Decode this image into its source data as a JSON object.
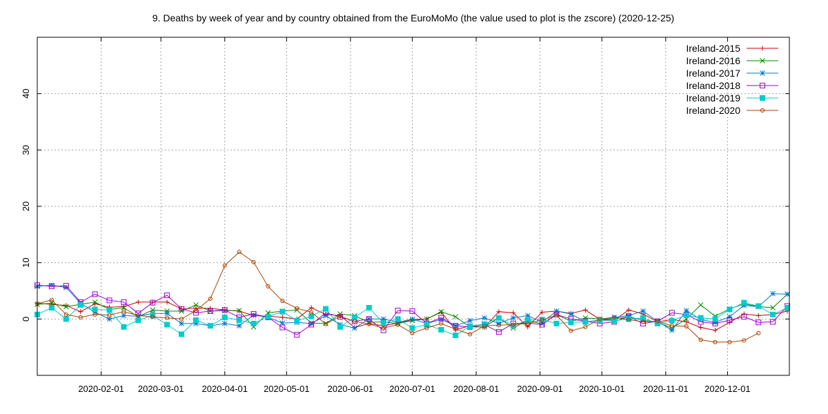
{
  "chart_data": {
    "type": "line",
    "title": "9. Deaths by week of year and by country obtained from the EuroMoMo (the value used to plot is the zscore) (2020-12-25)",
    "xlabel": "",
    "ylabel": "",
    "x_axis": {
      "kind": "date",
      "range": [
        "2020-01-01",
        "2020-12-31"
      ],
      "tick_labels": [
        "2020-02-01",
        "2020-03-01",
        "2020-04-01",
        "2020-05-01",
        "2020-06-01",
        "2020-07-01",
        "2020-08-01",
        "2020-09-01",
        "2020-10-01",
        "2020-11-01",
        "2020-12-01"
      ]
    },
    "y_axis": {
      "range": [
        -10,
        50
      ],
      "ticks": [
        0,
        10,
        20,
        30,
        40
      ]
    },
    "grid": true,
    "legend_position": "top-right",
    "x_dates": [
      "2020-01-01",
      "2020-01-08",
      "2020-01-15",
      "2020-01-22",
      "2020-01-29",
      "2020-02-05",
      "2020-02-12",
      "2020-02-19",
      "2020-02-26",
      "2020-03-04",
      "2020-03-11",
      "2020-03-18",
      "2020-03-25",
      "2020-04-01",
      "2020-04-08",
      "2020-04-15",
      "2020-04-22",
      "2020-04-29",
      "2020-05-06",
      "2020-05-13",
      "2020-05-20",
      "2020-05-27",
      "2020-06-03",
      "2020-06-10",
      "2020-06-17",
      "2020-06-24",
      "2020-07-01",
      "2020-07-08",
      "2020-07-15",
      "2020-07-22",
      "2020-07-29",
      "2020-08-05",
      "2020-08-12",
      "2020-08-19",
      "2020-08-26",
      "2020-09-02",
      "2020-09-09",
      "2020-09-16",
      "2020-09-23",
      "2020-09-30",
      "2020-10-07",
      "2020-10-14",
      "2020-10-21",
      "2020-10-28",
      "2020-11-04",
      "2020-11-11",
      "2020-11-18",
      "2020-11-25",
      "2020-12-02",
      "2020-12-09",
      "2020-12-16",
      "2020-12-23",
      "2020-12-30"
    ],
    "series": [
      {
        "name": "Ireland-2015",
        "color": "#cc0000",
        "marker": "plus",
        "values": [
          2.8,
          2.6,
          2.4,
          1.3,
          2.7,
          2.1,
          2.2,
          3.0,
          3.0,
          3.0,
          1.8,
          1.9,
          1.9,
          1.6,
          1.4,
          0.6,
          0.5,
          0.3,
          0.0,
          2.0,
          0.8,
          0.6,
          -1.5,
          -0.8,
          -1.2,
          -0.7,
          -0.1,
          0.0,
          1.2,
          -1.9,
          -1.2,
          -1.5,
          1.3,
          1.1,
          -1.4,
          1.2,
          1.4,
          1.0,
          1.6,
          -0.1,
          -0.2,
          1.6,
          0.9,
          -0.5,
          -0.1,
          -0.5,
          -1.5,
          -2.0,
          -0.6,
          0.9,
          0.6,
          0.8,
          1.4
        ]
      },
      {
        "name": "Ireland-2016",
        "color": "#008800",
        "marker": "x",
        "values": [
          2.6,
          2.8,
          2.2,
          2.6,
          3.0,
          1.7,
          2.0,
          0.4,
          1.6,
          1.4,
          1.4,
          2.5,
          1.4,
          1.5,
          1.5,
          -1.4,
          1.1,
          1.4,
          1.6,
          -0.7,
          -0.8,
          0.9,
          0.6,
          -0.6,
          -0.5,
          -0.8,
          -0.3,
          0.0,
          1.3,
          0.4,
          -1.4,
          -1.4,
          0.2,
          -1.6,
          -0.2,
          -0.9,
          0.8,
          -0.4,
          0.2,
          0.0,
          0.0,
          0.4,
          -0.2,
          -0.6,
          -1.6,
          0.0,
          2.5,
          0.5,
          1.8,
          2.7,
          2.2,
          2.0,
          4.4
        ]
      },
      {
        "name": "Ireland-2017",
        "color": "#0077cc",
        "marker": "star",
        "values": [
          5.8,
          6.0,
          5.6,
          2.8,
          1.2,
          0.0,
          0.6,
          0.5,
          1.0,
          1.0,
          -0.8,
          -0.8,
          -1.2,
          -0.8,
          -1.2,
          0.7,
          0.3,
          -0.7,
          -0.6,
          -0.8,
          0.6,
          -1.0,
          -1.6,
          0.0,
          0.0,
          -0.6,
          0.0,
          -0.8,
          -0.1,
          -1.2,
          -0.3,
          0.2,
          -0.8,
          0.2,
          0.6,
          -0.6,
          1.4,
          0.9,
          -0.5,
          -0.2,
          0.3,
          0.6,
          1.4,
          -0.4,
          -2.0,
          1.5,
          -0.1,
          -0.6,
          0.4,
          2.4,
          2.2,
          4.5,
          4.4
        ]
      },
      {
        "name": "Ireland-2018",
        "color": "#9900cc",
        "marker": "open-square",
        "values": [
          6.0,
          5.8,
          5.9,
          3.0,
          4.4,
          3.3,
          3.0,
          1.0,
          2.9,
          4.2,
          1.8,
          1.1,
          1.4,
          1.6,
          0.3,
          0.9,
          0.3,
          -1.5,
          -2.8,
          -1.0,
          1.1,
          0.4,
          -0.4,
          0.0,
          -2.0,
          1.5,
          1.4,
          -0.8,
          0.2,
          -1.2,
          -1.4,
          -1.0,
          -2.3,
          -0.8,
          -0.7,
          -1.0,
          0.8,
          0.0,
          -0.4,
          -0.8,
          -0.5,
          0.5,
          -0.8,
          -0.4,
          1.1,
          0.8,
          -0.5,
          -0.8,
          -0.2,
          0.4,
          -0.6,
          -0.5,
          2.3
        ]
      },
      {
        "name": "Ireland-2019",
        "color": "#00cccc",
        "marker": "filled-square",
        "values": [
          0.8,
          2.0,
          0.0,
          2.5,
          1.7,
          1.6,
          -1.4,
          -0.2,
          0.6,
          -1.0,
          -2.7,
          -0.2,
          -1.2,
          0.3,
          -0.2,
          -0.8,
          0.4,
          1.3,
          -0.3,
          0.5,
          1.8,
          -1.4,
          0.3,
          2.0,
          -0.7,
          0.0,
          -1.6,
          -1.0,
          -1.9,
          -2.9,
          -1.3,
          -0.9,
          0.2,
          -1.2,
          -0.2,
          -0.1,
          -0.8,
          -0.6,
          -0.5,
          -0.3,
          -0.3,
          0.0,
          0.2,
          -0.8,
          -0.3,
          0.7,
          0.2,
          0.0,
          1.7,
          2.9,
          2.3,
          0.8,
          2.0
        ]
      },
      {
        "name": "Ireland-2020",
        "color": "#aa4400",
        "marker": "open-circle",
        "values": [
          2.7,
          3.4,
          0.8,
          0.3,
          0.8,
          0.7,
          1.3,
          0.6,
          0.4,
          0.2,
          0.0,
          1.5,
          3.6,
          9.5,
          11.9,
          10.1,
          5.8,
          3.2,
          1.9,
          1.2,
          -0.9,
          0.5,
          -0.4,
          -0.9,
          -1.6,
          -1.0,
          -2.5,
          -1.6,
          -0.8,
          -1.8,
          -2.7,
          -1.2,
          -1.1,
          -1.0,
          -0.8,
          -0.2,
          0.7,
          -2.1,
          -1.4,
          0.0,
          0.3,
          -0.1,
          -0.5,
          -0.4,
          -1.2,
          -1.3,
          -3.7,
          -4.1,
          -4.1,
          -3.8,
          -2.5
        ]
      }
    ]
  }
}
